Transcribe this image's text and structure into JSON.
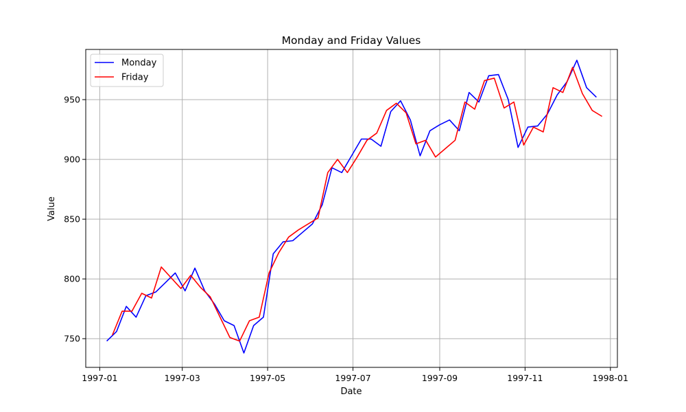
{
  "chart_data": {
    "type": "line",
    "title": "Monday and Friday Values",
    "xlabel": "Date",
    "ylabel": "Value",
    "x_ticks": [
      "1997-01",
      "1997-03",
      "1997-05",
      "1997-07",
      "1997-09",
      "1997-11",
      "1998-01"
    ],
    "y_ticks": [
      750,
      800,
      850,
      900,
      950
    ],
    "xlim": [
      "1996-12-22",
      "1998-01-06"
    ],
    "ylim": [
      726,
      992
    ],
    "grid": true,
    "legend_position": "upper-left",
    "series": [
      {
        "name": "Monday",
        "color": "#0000ff",
        "points": [
          [
            "1997-01-06",
            748
          ],
          [
            "1997-01-13",
            756
          ],
          [
            "1997-01-20",
            777
          ],
          [
            "1997-01-27",
            768
          ],
          [
            "1997-02-03",
            786
          ],
          [
            "1997-02-10",
            789
          ],
          [
            "1997-02-17",
            797
          ],
          [
            "1997-02-24",
            805
          ],
          [
            "1997-03-03",
            790
          ],
          [
            "1997-03-10",
            809
          ],
          [
            "1997-03-17",
            790
          ],
          [
            "1997-03-24",
            779
          ],
          [
            "1997-03-31",
            765
          ],
          [
            "1997-04-07",
            761
          ],
          [
            "1997-04-14",
            738
          ],
          [
            "1997-04-21",
            761
          ],
          [
            "1997-04-28",
            768
          ],
          [
            "1997-05-05",
            821
          ],
          [
            "1997-05-12",
            831
          ],
          [
            "1997-05-19",
            832
          ],
          [
            "1997-05-26",
            839
          ],
          [
            "1997-06-02",
            846
          ],
          [
            "1997-06-09",
            862
          ],
          [
            "1997-06-16",
            893
          ],
          [
            "1997-06-23",
            889
          ],
          [
            "1997-06-30",
            903
          ],
          [
            "1997-07-07",
            917
          ],
          [
            "1997-07-14",
            917
          ],
          [
            "1997-07-21",
            911
          ],
          [
            "1997-07-28",
            940
          ],
          [
            "1997-08-04",
            949
          ],
          [
            "1997-08-11",
            933
          ],
          [
            "1997-08-18",
            903
          ],
          [
            "1997-08-25",
            924
          ],
          [
            "1997-09-01",
            929
          ],
          [
            "1997-09-08",
            933
          ],
          [
            "1997-09-15",
            924
          ],
          [
            "1997-09-22",
            956
          ],
          [
            "1997-09-29",
            948
          ],
          [
            "1997-10-06",
            970
          ],
          [
            "1997-10-13",
            971
          ],
          [
            "1997-10-20",
            950
          ],
          [
            "1997-10-27",
            910
          ],
          [
            "1997-11-03",
            927
          ],
          [
            "1997-11-10",
            928
          ],
          [
            "1997-11-17",
            938
          ],
          [
            "1997-11-24",
            954
          ],
          [
            "1997-12-01",
            965
          ],
          [
            "1997-12-08",
            983
          ],
          [
            "1997-12-15",
            960
          ],
          [
            "1997-12-22",
            952
          ]
        ]
      },
      {
        "name": "Friday",
        "color": "#ff0000",
        "points": [
          [
            "1997-01-10",
            753
          ],
          [
            "1997-01-17",
            773
          ],
          [
            "1997-01-24",
            773
          ],
          [
            "1997-01-31",
            788
          ],
          [
            "1997-02-07",
            784
          ],
          [
            "1997-02-14",
            810
          ],
          [
            "1997-02-21",
            801
          ],
          [
            "1997-02-28",
            792
          ],
          [
            "1997-03-07",
            803
          ],
          [
            "1997-03-14",
            793
          ],
          [
            "1997-03-21",
            785
          ],
          [
            "1997-03-28",
            768
          ],
          [
            "1997-04-04",
            751
          ],
          [
            "1997-04-11",
            748
          ],
          [
            "1997-04-18",
            765
          ],
          [
            "1997-04-25",
            768
          ],
          [
            "1997-05-02",
            805
          ],
          [
            "1997-05-09",
            822
          ],
          [
            "1997-05-16",
            835
          ],
          [
            "1997-05-23",
            841
          ],
          [
            "1997-05-30",
            846
          ],
          [
            "1997-06-06",
            851
          ],
          [
            "1997-06-13",
            889
          ],
          [
            "1997-06-20",
            900
          ],
          [
            "1997-06-27",
            889
          ],
          [
            "1997-07-04",
            902
          ],
          [
            "1997-07-11",
            916
          ],
          [
            "1997-07-18",
            922
          ],
          [
            "1997-07-25",
            941
          ],
          [
            "1997-08-01",
            947
          ],
          [
            "1997-08-08",
            939
          ],
          [
            "1997-08-15",
            913
          ],
          [
            "1997-08-22",
            916
          ],
          [
            "1997-08-29",
            902
          ],
          [
            "1997-09-05",
            909
          ],
          [
            "1997-09-12",
            916
          ],
          [
            "1997-09-19",
            948
          ],
          [
            "1997-09-26",
            942
          ],
          [
            "1997-10-03",
            966
          ],
          [
            "1997-10-10",
            968
          ],
          [
            "1997-10-17",
            943
          ],
          [
            "1997-10-24",
            948
          ],
          [
            "1997-10-31",
            912
          ],
          [
            "1997-11-07",
            927
          ],
          [
            "1997-11-14",
            923
          ],
          [
            "1997-11-21",
            960
          ],
          [
            "1997-11-28",
            956
          ],
          [
            "1997-12-05",
            977
          ],
          [
            "1997-12-12",
            955
          ],
          [
            "1997-12-19",
            941
          ],
          [
            "1997-12-26",
            936
          ]
        ]
      }
    ]
  }
}
